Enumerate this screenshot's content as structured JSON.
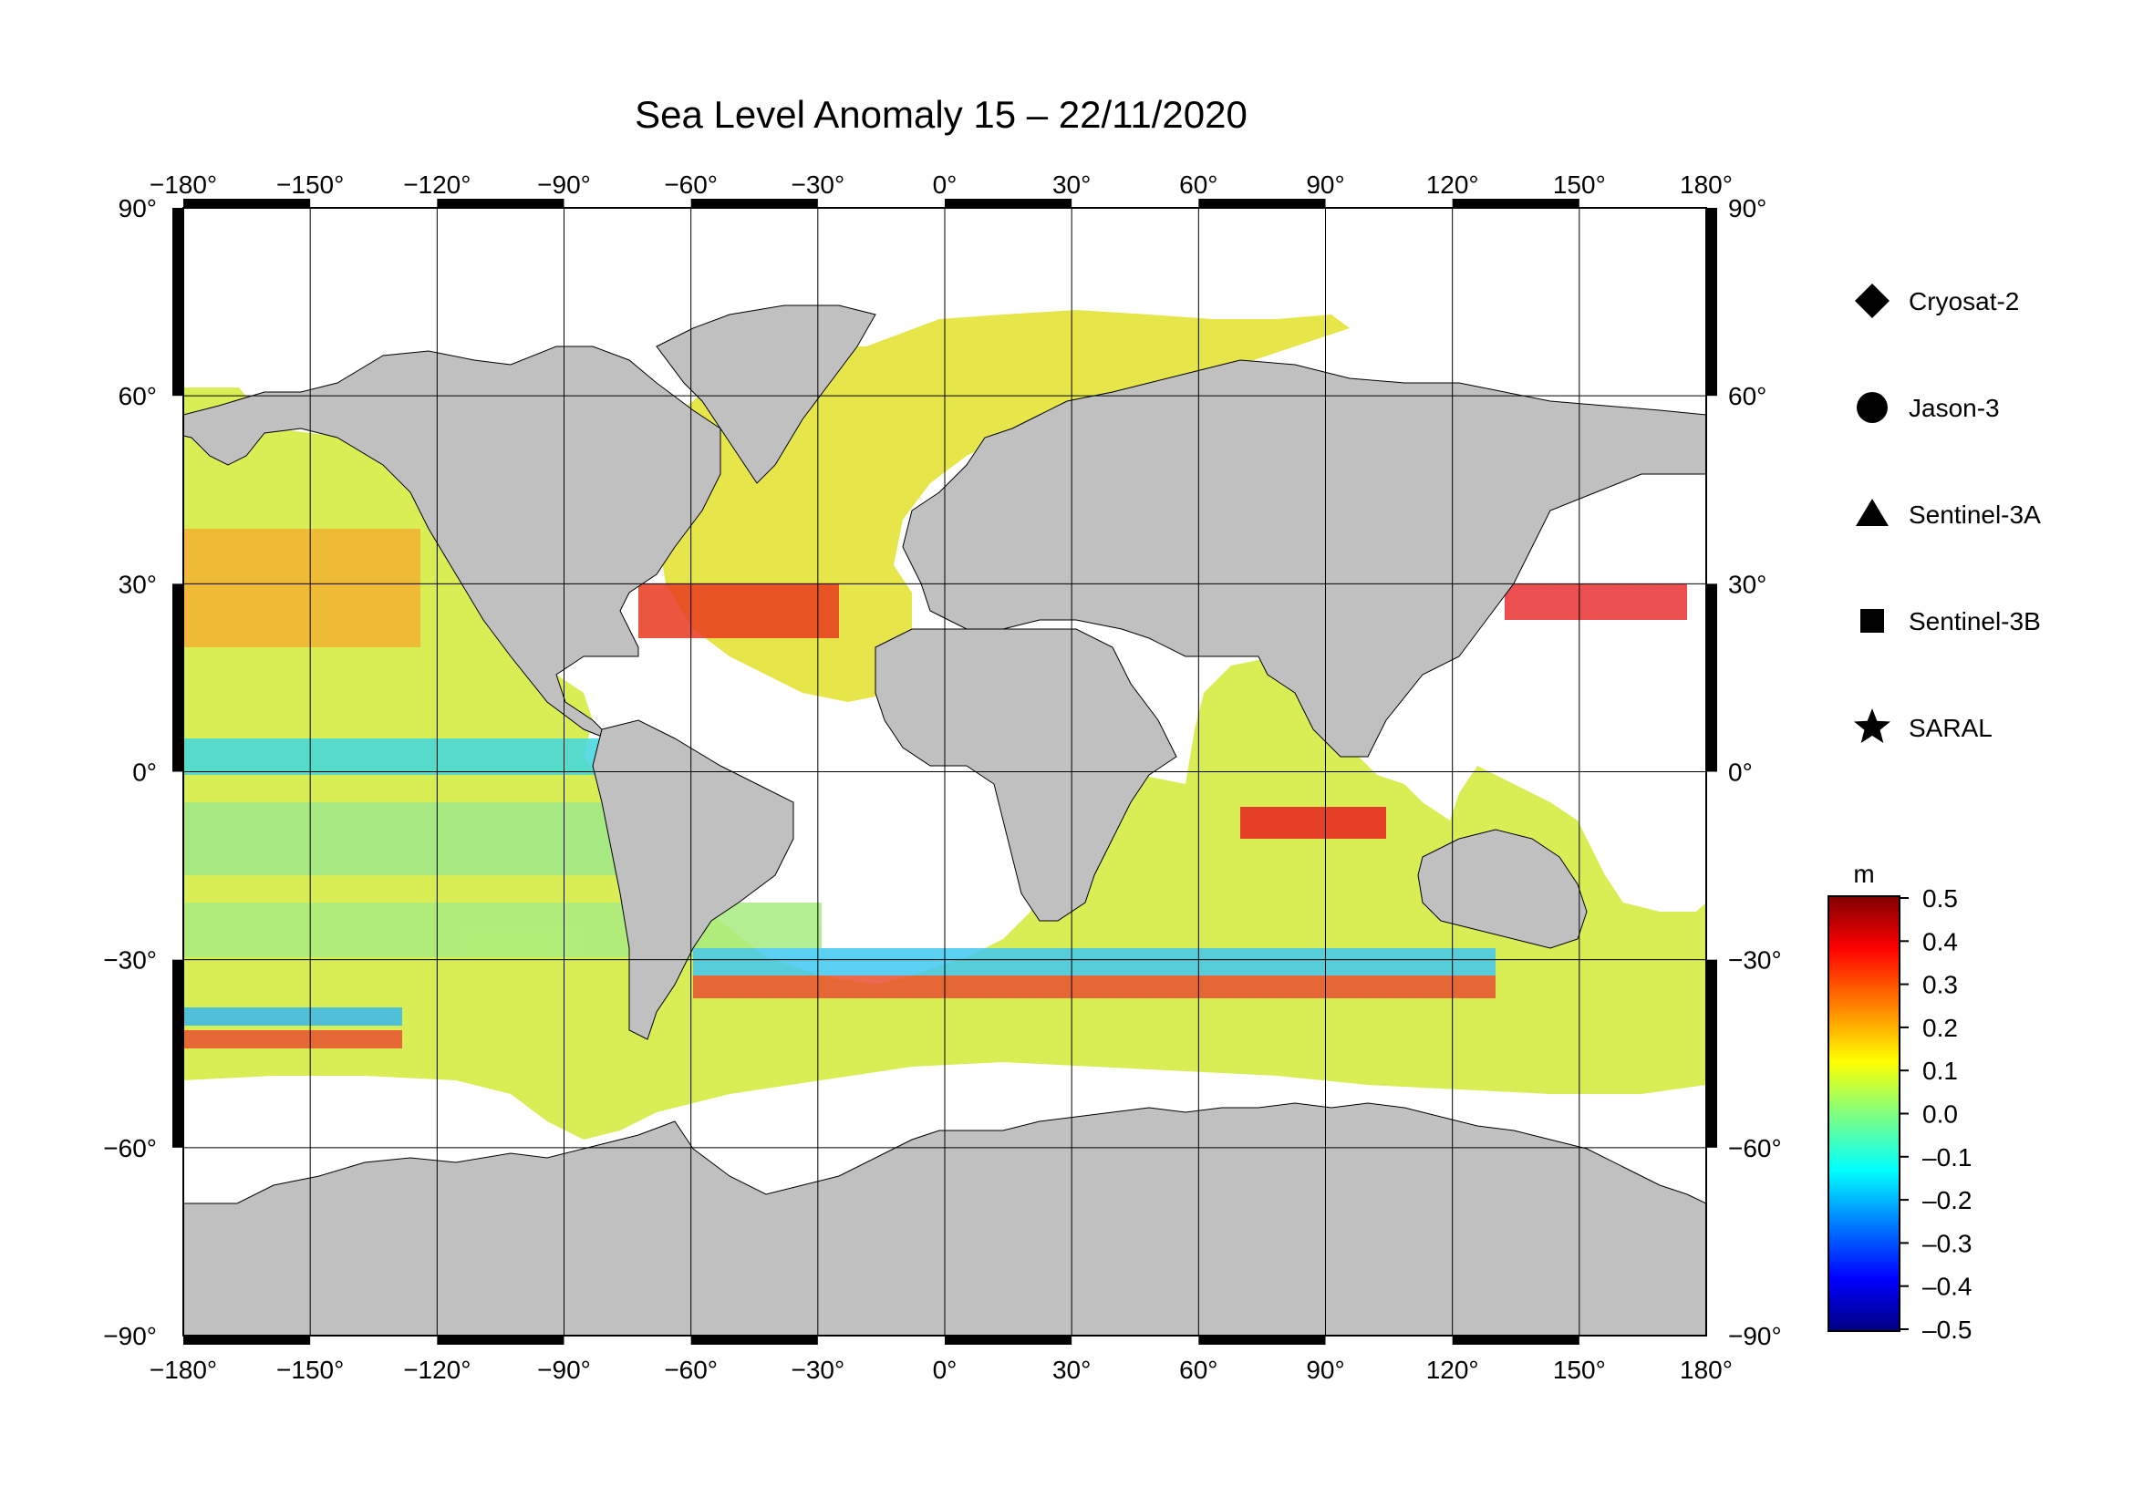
{
  "title": "Sea Level Anomaly 15 – 22/11/2020",
  "axes": {
    "lon_ticks": [
      -180,
      -150,
      -120,
      -90,
      -60,
      -30,
      0,
      30,
      60,
      90,
      120,
      150,
      180
    ],
    "lat_ticks": [
      90,
      60,
      30,
      0,
      -30,
      -60,
      -90
    ],
    "degree_symbol": "°",
    "lon_range": [
      -180,
      180
    ],
    "lat_range": [
      -90,
      90
    ],
    "grid": true
  },
  "legend": {
    "placement": "right",
    "items": [
      {
        "marker": "diamond",
        "label": "Cryosat-2"
      },
      {
        "marker": "circle",
        "label": "Jason-3"
      },
      {
        "marker": "triangle",
        "label": "Sentinel-3A"
      },
      {
        "marker": "square",
        "label": "Sentinel-3B"
      },
      {
        "marker": "star",
        "label": "SARAL"
      }
    ]
  },
  "colorbar": {
    "unit": "m",
    "ticks": [
      "0.5",
      "0.4",
      "0.3",
      "0.2",
      "0.1",
      "0.0",
      "–0.1",
      "–0.2",
      "–0.3",
      "–0.4",
      "–0.5"
    ],
    "range": [
      -0.5,
      0.5
    ],
    "colors": [
      "#000080",
      "#0000ff",
      "#0080ff",
      "#00ffff",
      "#80ff80",
      "#ffff00",
      "#ff8000",
      "#ff0000",
      "#800000"
    ]
  },
  "colors": {
    "land": "#c0c0c0",
    "ocean_dominant": "#d6f24a",
    "no_data": "#ffffff"
  }
}
